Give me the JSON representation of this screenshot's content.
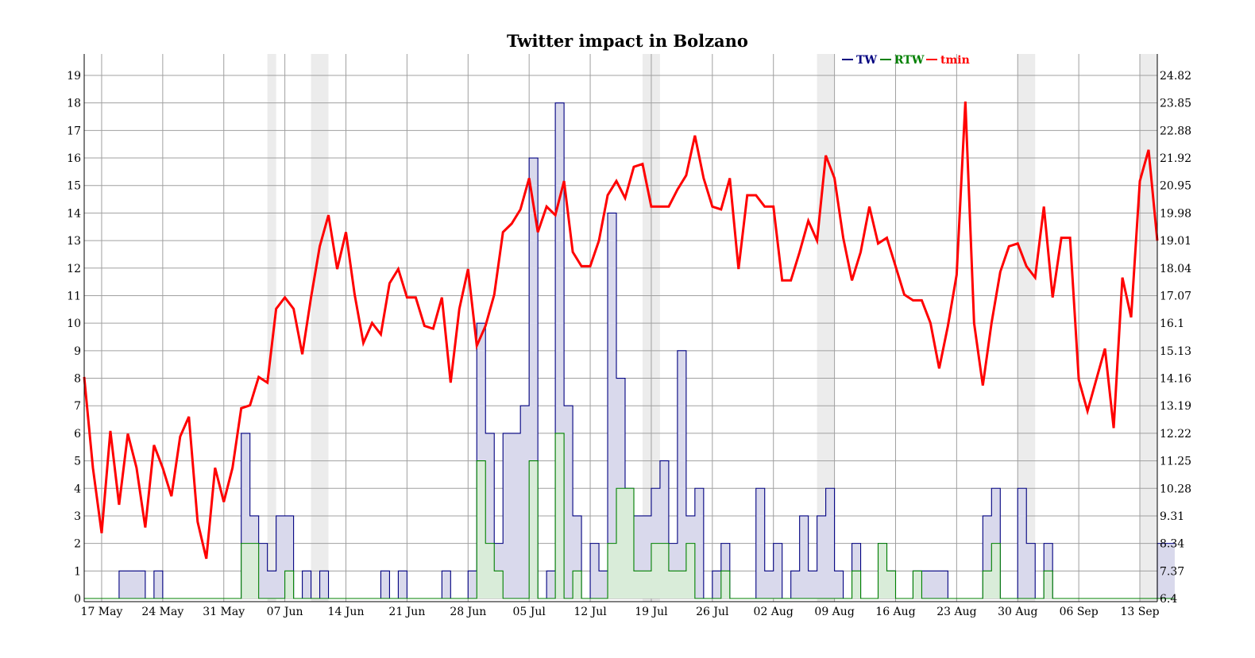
{
  "chart_data": {
    "type": "line",
    "title": "Twitter impact in Bolzano",
    "legend": {
      "placement": "top-right",
      "entries": [
        {
          "label": "TW",
          "color": "#000080"
        },
        {
          "label": "RTW",
          "color": "#008000"
        },
        {
          "label": "tmin",
          "color": "#ff0000"
        }
      ]
    },
    "grid": true,
    "colors": {
      "tw_line": "#000080",
      "tw_fill": "#d9d9ec",
      "rtw_line": "#008000",
      "rtw_fill": "#d9ecd9",
      "tmin": "#ff0000",
      "shade": "#ececec",
      "grid": "#a0a0a0"
    },
    "x": {
      "start": "2020-05-15",
      "end": "2020-09-15",
      "tick_labels": [
        "17 May",
        "24 May",
        "31 May",
        "07 Jun",
        "14 Jun",
        "21 Jun",
        "28 Jun",
        "05 Jul",
        "12 Jul",
        "19 Jul",
        "26 Jul",
        "02 Aug",
        "09 Aug",
        "16 Aug",
        "23 Aug",
        "30 Aug",
        "06 Sep",
        "13 Sep"
      ]
    },
    "y_left": {
      "ylim": [
        0,
        19
      ],
      "ticks": [
        0,
        1,
        2,
        3,
        4,
        5,
        6,
        7,
        8,
        9,
        10,
        11,
        12,
        13,
        14,
        15,
        16,
        17,
        18,
        19
      ]
    },
    "y_right": {
      "ylim": [
        6.4,
        24.82
      ],
      "tick_labels": [
        "6.4",
        "7.37",
        "8.34",
        "9.31",
        "10.28",
        "11.25",
        "12.22",
        "13.19",
        "14.16",
        "15.13",
        "16.1",
        "17.07",
        "18.04",
        "19.01",
        "19.98",
        "20.95",
        "21.92",
        "22.88",
        "23.85",
        "24.82"
      ]
    },
    "shaded_periods": [
      [
        "2020-06-05",
        "2020-06-06"
      ],
      [
        "2020-06-10",
        "2020-06-12"
      ],
      [
        "2020-07-18",
        "2020-07-20"
      ],
      [
        "2020-08-07",
        "2020-08-09"
      ],
      [
        "2020-08-30",
        "2020-09-01"
      ],
      [
        "2020-09-13",
        "2020-09-15"
      ]
    ],
    "series": [
      {
        "name": "TW",
        "style": "step",
        "values": [
          0,
          0,
          0,
          0,
          1,
          1,
          1,
          0,
          1,
          0,
          0,
          0,
          0,
          0,
          0,
          0,
          0,
          0,
          6,
          3,
          2,
          1,
          3,
          3,
          0,
          1,
          0,
          1,
          0,
          0,
          0,
          0,
          0,
          0,
          1,
          0,
          1,
          0,
          0,
          0,
          0,
          1,
          0,
          0,
          1,
          10,
          6,
          2,
          6,
          6,
          7,
          16,
          0,
          1,
          18,
          7,
          3,
          0,
          2,
          1,
          14,
          8,
          4,
          3,
          3,
          4,
          5,
          2,
          9,
          3,
          4,
          0,
          1,
          2,
          0,
          0,
          0,
          4,
          1,
          2,
          0,
          1,
          3,
          1,
          3,
          4,
          1,
          0,
          2,
          0,
          0,
          2,
          1,
          0,
          0,
          1,
          1,
          1,
          1,
          0,
          0,
          0,
          0,
          3,
          4,
          0,
          0,
          4,
          2,
          0,
          2,
          0,
          0,
          0,
          0,
          0,
          0,
          0,
          0,
          0,
          0,
          0,
          0,
          2,
          2
        ]
      },
      {
        "name": "RTW",
        "style": "step",
        "values": [
          0,
          0,
          0,
          0,
          0,
          0,
          0,
          0,
          0,
          0,
          0,
          0,
          0,
          0,
          0,
          0,
          0,
          0,
          2,
          2,
          0,
          0,
          0,
          1,
          0,
          0,
          0,
          0,
          0,
          0,
          0,
          0,
          0,
          0,
          0,
          0,
          0,
          0,
          0,
          0,
          0,
          0,
          0,
          0,
          0,
          5,
          2,
          1,
          0,
          0,
          0,
          5,
          0,
          0,
          6,
          0,
          1,
          0,
          0,
          0,
          2,
          4,
          4,
          1,
          1,
          2,
          2,
          1,
          1,
          2,
          0,
          0,
          0,
          1,
          0,
          0,
          0,
          0,
          0,
          0,
          0,
          0,
          0,
          0,
          0,
          0,
          0,
          0,
          1,
          0,
          0,
          2,
          1,
          0,
          0,
          1,
          0,
          0,
          0,
          0,
          0,
          0,
          0,
          1,
          2,
          0,
          0,
          0,
          0,
          0,
          1,
          0,
          0,
          0,
          0,
          0,
          0,
          0,
          0,
          0,
          0,
          0,
          0,
          0,
          0
        ]
      },
      {
        "name": "tmin",
        "style": "line",
        "values": [
          14.2,
          11.0,
          8.7,
          12.3,
          9.7,
          12.2,
          11.0,
          8.9,
          11.8,
          11.0,
          10.0,
          12.1,
          12.8,
          9.1,
          7.8,
          11.0,
          9.8,
          11.0,
          13.1,
          13.2,
          14.2,
          14.0,
          16.6,
          17.0,
          16.6,
          15.0,
          17.0,
          18.8,
          19.9,
          18.0,
          19.3,
          17.1,
          15.4,
          16.1,
          15.7,
          17.5,
          18.0,
          17.0,
          17.0,
          16.0,
          15.9,
          17.0,
          14.0,
          16.6,
          18.0,
          15.3,
          16.0,
          17.1,
          19.3,
          19.6,
          20.1,
          21.2,
          19.3,
          20.2,
          19.9,
          21.1,
          18.6,
          18.1,
          18.1,
          19.0,
          20.6,
          21.1,
          20.5,
          21.6,
          21.7,
          20.2,
          20.2,
          20.2,
          20.8,
          21.3,
          22.7,
          21.2,
          20.2,
          20.1,
          21.2,
          18.0,
          20.6,
          20.6,
          20.2,
          20.2,
          17.6,
          17.6,
          18.6,
          19.7,
          19.0,
          22.0,
          21.2,
          19.1,
          17.6,
          18.6,
          20.2,
          18.9,
          19.1,
          18.1,
          17.1,
          16.9,
          16.9,
          16.1,
          14.5,
          16.0,
          17.8,
          23.9,
          16.1,
          13.9,
          16.1,
          17.9,
          18.8,
          18.9,
          18.1,
          17.7,
          20.2,
          17.0,
          19.1,
          19.1,
          14.1,
          13.0,
          14.1,
          15.2,
          12.4,
          17.7,
          16.3,
          21.1,
          22.2,
          19.0
        ]
      }
    ]
  }
}
